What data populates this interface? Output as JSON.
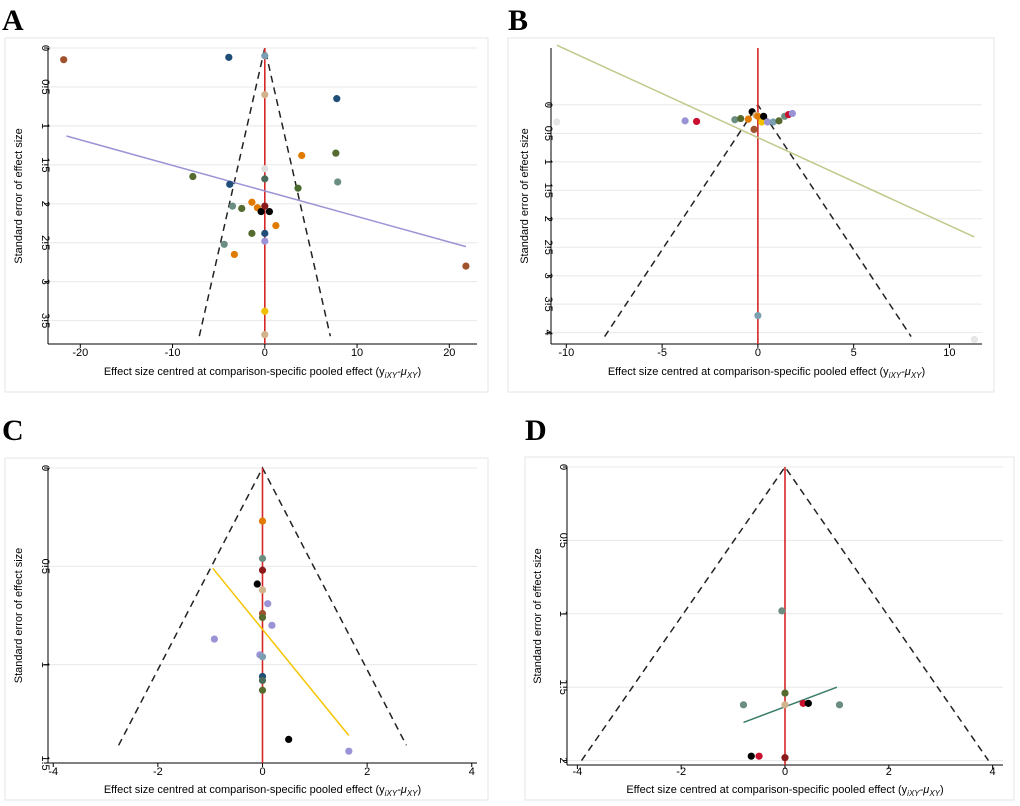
{
  "chart_data": [
    {
      "type": "scatter",
      "panel_label": "A",
      "xlabel": "Effect size centred at comparison-specific pooled effect (y",
      "xlabel_sub": "iXY",
      "xlabel_mid": "-μ",
      "xlabel_sub2": "XY",
      "xlabel_end": ")",
      "ylabel": "Standard error of effect size",
      "xlim": [
        -23.5,
        23
      ],
      "ylim": [
        0,
        3.8
      ],
      "x_ticks": [
        -20,
        -10,
        0,
        10,
        20
      ],
      "x_tick_labels": [
        "-20",
        "-10",
        "0",
        "10",
        "20"
      ],
      "y_ticks": [
        0,
        0.5,
        1,
        1.5,
        2,
        2.5,
        3,
        3.5
      ],
      "y_tick_labels": [
        "0",
        "0.5",
        "1",
        "1.5",
        "2",
        "2.5",
        "3",
        "3.5"
      ],
      "funnel": {
        "apex": [
          0,
          0
        ],
        "base_left": [
          -7.1,
          3.7
        ],
        "base_right": [
          7.1,
          3.7
        ]
      },
      "reference_line_x": 0,
      "regression_line": {
        "from": [
          -21.5,
          1.13
        ],
        "to": [
          21.8,
          2.55
        ],
        "color": "#9a94d6"
      },
      "points": [
        {
          "x": -21.8,
          "y": 0.15,
          "color": "#a0522d"
        },
        {
          "x": -3.9,
          "y": 0.12,
          "color": "#1f4e79"
        },
        {
          "x": 0,
          "y": 0.1,
          "color": "#7a9fb0"
        },
        {
          "x": 0,
          "y": 0.6,
          "color": "#d2b48c"
        },
        {
          "x": 7.8,
          "y": 0.65,
          "color": "#1f4e79"
        },
        {
          "x": 4.0,
          "y": 1.38,
          "color": "#e07b00"
        },
        {
          "x": 7.7,
          "y": 1.35,
          "color": "#556b2f"
        },
        {
          "x": -7.8,
          "y": 1.65,
          "color": "#556b2f"
        },
        {
          "x": -3.8,
          "y": 1.75,
          "color": "#1f4e79"
        },
        {
          "x": 0,
          "y": 1.55,
          "color": "#e0e0e0"
        },
        {
          "x": 0,
          "y": 1.68,
          "color": "#4a6b5a"
        },
        {
          "x": 7.9,
          "y": 1.72,
          "color": "#6b8e80"
        },
        {
          "x": 3.6,
          "y": 1.8,
          "color": "#4a6b2f"
        },
        {
          "x": -1.4,
          "y": 1.98,
          "color": "#e07b00"
        },
        {
          "x": -0.8,
          "y": 2.05,
          "color": "#e07b00"
        },
        {
          "x": -3.5,
          "y": 2.03,
          "color": "#6b8e80"
        },
        {
          "x": -2.5,
          "y": 2.06,
          "color": "#556b2f"
        },
        {
          "x": -0.4,
          "y": 2.1,
          "color": "#000000"
        },
        {
          "x": 0,
          "y": 2.03,
          "color": "#8b1a1a"
        },
        {
          "x": 0.5,
          "y": 2.1,
          "color": "#000000"
        },
        {
          "x": 1.2,
          "y": 2.28,
          "color": "#e07b00"
        },
        {
          "x": -1.4,
          "y": 2.38,
          "color": "#556b2f"
        },
        {
          "x": 0,
          "y": 2.38,
          "color": "#1f4e79"
        },
        {
          "x": 0,
          "y": 2.48,
          "color": "#9a94d6"
        },
        {
          "x": -4.4,
          "y": 2.52,
          "color": "#6b8e80"
        },
        {
          "x": -3.3,
          "y": 2.65,
          "color": "#e07b00"
        },
        {
          "x": 21.8,
          "y": 2.8,
          "color": "#a0522d"
        },
        {
          "x": 0,
          "y": 3.38,
          "color": "#f0c000"
        },
        {
          "x": 0,
          "y": 3.68,
          "color": "#d2b48c"
        }
      ]
    },
    {
      "type": "scatter",
      "panel_label": "B",
      "xlabel": "Effect size centred at comparison-specific pooled effect (y",
      "xlabel_sub": "iXY",
      "xlabel_mid": "-μ",
      "xlabel_sub2": "XY",
      "xlabel_end": ")",
      "ylabel": "Standard error of effect size",
      "xlim": [
        -10.8,
        11.7
      ],
      "ylim": [
        -1.0,
        4.2
      ],
      "x_ticks": [
        -10,
        -5,
        0,
        5,
        10
      ],
      "x_tick_labels": [
        "-10",
        "-5",
        "0",
        "5",
        "10"
      ],
      "y_ticks": [
        0,
        0.5,
        1,
        1.5,
        2,
        2.5,
        3,
        3.5,
        4
      ],
      "y_tick_labels": [
        "0",
        "0.5",
        "1",
        "1.5",
        "2",
        "2.5",
        "3",
        "3.5",
        "4"
      ],
      "funnel": {
        "apex": [
          0,
          0
        ],
        "base_left": [
          -8.0,
          4.07
        ],
        "base_right": [
          8.0,
          4.07
        ]
      },
      "reference_line_x": 0,
      "regression_line": {
        "from": [
          -10.5,
          -1.05
        ],
        "to": [
          11.3,
          2.32
        ],
        "color": "#c2c88a"
      },
      "points": [
        {
          "x": -10.5,
          "y": 0.3,
          "color": "#e6e6e6"
        },
        {
          "x": -3.8,
          "y": 0.28,
          "color": "#9a94d6"
        },
        {
          "x": -3.2,
          "y": 0.29,
          "color": "#c8102e"
        },
        {
          "x": -1.2,
          "y": 0.26,
          "color": "#6b8e80"
        },
        {
          "x": -0.9,
          "y": 0.24,
          "color": "#556b2f"
        },
        {
          "x": -0.5,
          "y": 0.25,
          "color": "#e07b00"
        },
        {
          "x": -0.3,
          "y": 0.12,
          "color": "#000000"
        },
        {
          "x": -0.1,
          "y": 0.18,
          "color": "#d2b48c"
        },
        {
          "x": 0,
          "y": 0.2,
          "color": "#e07b00"
        },
        {
          "x": 0.2,
          "y": 0.3,
          "color": "#f0c000"
        },
        {
          "x": 0.3,
          "y": 0.2,
          "color": "#000000"
        },
        {
          "x": 0.5,
          "y": 0.3,
          "color": "#9a94d6"
        },
        {
          "x": -0.2,
          "y": 0.43,
          "color": "#a0522d"
        },
        {
          "x": 0.8,
          "y": 0.3,
          "color": "#7a9fb0"
        },
        {
          "x": 1.1,
          "y": 0.28,
          "color": "#556b2f"
        },
        {
          "x": 1.4,
          "y": 0.2,
          "color": "#6b8e80"
        },
        {
          "x": 1.6,
          "y": 0.17,
          "color": "#c8102e"
        },
        {
          "x": 1.8,
          "y": 0.15,
          "color": "#9a94d6"
        },
        {
          "x": 0,
          "y": 3.7,
          "color": "#7a9fb0"
        },
        {
          "x": 11.3,
          "y": 4.12,
          "color": "#e6e6e6"
        }
      ]
    },
    {
      "type": "scatter",
      "panel_label": "C",
      "xlabel": "Effect size centred at comparison-specific pooled effect (y",
      "xlabel_sub": "iXY",
      "xlabel_mid": "-μ",
      "xlabel_sub2": "XY",
      "xlabel_end": ")",
      "ylabel": "Standard error of effect size",
      "xlim": [
        -4.1,
        4.1
      ],
      "ylim": [
        0,
        1.5
      ],
      "x_ticks": [
        -4,
        -2,
        0,
        2,
        4
      ],
      "x_tick_labels": [
        "-4",
        "-2",
        "0",
        "2",
        "4"
      ],
      "y_ticks": [
        0,
        0.5,
        1,
        1.5
      ],
      "y_tick_labels": [
        "0",
        "0.5",
        "1",
        "1.5"
      ],
      "funnel": {
        "apex": [
          0,
          0
        ],
        "base_left": [
          -2.75,
          1.41
        ],
        "base_right": [
          2.75,
          1.41
        ]
      },
      "reference_line_x": 0,
      "regression_line": {
        "from": [
          -0.95,
          0.51
        ],
        "to": [
          1.65,
          1.36
        ],
        "color": "#f5c400"
      },
      "points": [
        {
          "x": 0,
          "y": 0.27,
          "color": "#e07b00"
        },
        {
          "x": 0,
          "y": 0.46,
          "color": "#6b8e80"
        },
        {
          "x": 0,
          "y": 0.52,
          "color": "#8b1a1a"
        },
        {
          "x": -0.1,
          "y": 0.59,
          "color": "#000000"
        },
        {
          "x": 0,
          "y": 0.62,
          "color": "#d2b48c"
        },
        {
          "x": 0.1,
          "y": 0.69,
          "color": "#9a94d6"
        },
        {
          "x": 0,
          "y": 0.74,
          "color": "#a0522d"
        },
        {
          "x": 0,
          "y": 0.76,
          "color": "#556b2f"
        },
        {
          "x": 0.18,
          "y": 0.8,
          "color": "#9a94d6"
        },
        {
          "x": -0.92,
          "y": 0.87,
          "color": "#9a94d6"
        },
        {
          "x": -0.05,
          "y": 0.95,
          "color": "#9a94d6"
        },
        {
          "x": 0,
          "y": 0.96,
          "color": "#7a9fb0"
        },
        {
          "x": 0,
          "y": 1.06,
          "color": "#1f4e79"
        },
        {
          "x": 0,
          "y": 1.08,
          "color": "#4a6b5a"
        },
        {
          "x": 0,
          "y": 1.13,
          "color": "#556b2f"
        },
        {
          "x": 0.5,
          "y": 1.38,
          "color": "#000000"
        },
        {
          "x": 1.65,
          "y": 1.44,
          "color": "#9a94d6"
        }
      ]
    },
    {
      "type": "scatter",
      "panel_label": "D",
      "xlabel": "Effect size centred at comparison-specific pooled effect (y",
      "xlabel_sub": "iXY",
      "xlabel_mid": "-μ",
      "xlabel_sub2": "XY",
      "xlabel_end": ")",
      "ylabel": "Standard error of effect size",
      "xlim": [
        -4.2,
        4.2
      ],
      "ylim": [
        0,
        2.03
      ],
      "x_ticks": [
        -4,
        -2,
        0,
        2,
        4
      ],
      "x_tick_labels": [
        "-4",
        "-2",
        "0",
        "2",
        "4"
      ],
      "y_ticks": [
        0,
        0.5,
        1,
        1.5,
        2
      ],
      "y_tick_labels": [
        "0",
        "0.5",
        "1",
        "1.5",
        "2"
      ],
      "funnel": {
        "apex": [
          0,
          0
        ],
        "base_left": [
          -3.92,
          2.0
        ],
        "base_right": [
          3.92,
          2.0
        ]
      },
      "reference_line_x": 0,
      "regression_line": {
        "from": [
          -0.8,
          1.74
        ],
        "to": [
          1.0,
          1.5
        ],
        "color": "#3a7d6b"
      },
      "points": [
        {
          "x": -0.06,
          "y": 0.98,
          "color": "#6b8e80"
        },
        {
          "x": 0,
          "y": 1.54,
          "color": "#556b2f"
        },
        {
          "x": -0.8,
          "y": 1.62,
          "color": "#6b8e80"
        },
        {
          "x": 0,
          "y": 1.62,
          "color": "#d2b48c"
        },
        {
          "x": 0.35,
          "y": 1.61,
          "color": "#c8102e"
        },
        {
          "x": 0.45,
          "y": 1.61,
          "color": "#000000"
        },
        {
          "x": 1.05,
          "y": 1.62,
          "color": "#6b8e80"
        },
        {
          "x": -0.65,
          "y": 1.97,
          "color": "#000000"
        },
        {
          "x": -0.5,
          "y": 1.97,
          "color": "#c8102e"
        },
        {
          "x": 0,
          "y": 1.98,
          "color": "#8b1a1a"
        }
      ]
    }
  ]
}
